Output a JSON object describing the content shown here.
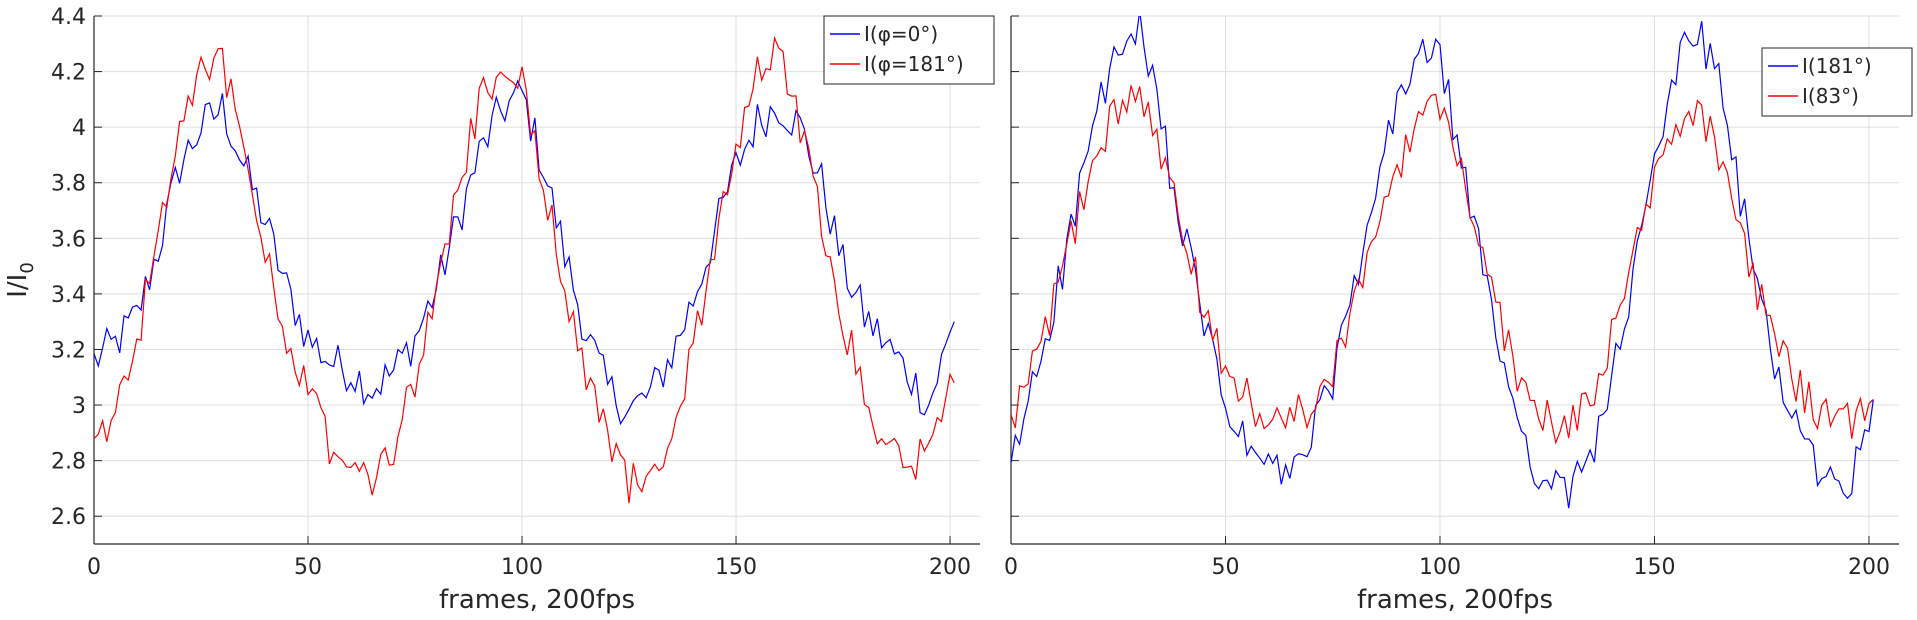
{
  "chart_data": [
    {
      "type": "line",
      "xlabel": "frames, 200fps",
      "ylabel": "I/I",
      "ylabel_sub": "0",
      "xlim": [
        0,
        207
      ],
      "ylim": [
        2.5,
        4.4
      ],
      "xticks": [
        "0",
        "50",
        "100",
        "150",
        "200"
      ],
      "yticks": [
        "2.6",
        "2.8",
        "3",
        "3.2",
        "3.4",
        "3.6",
        "3.8",
        "4",
        "4.2",
        "4.4"
      ],
      "grid": true,
      "legend_position": "top-right",
      "series": [
        {
          "name": "I(φ=0°)",
          "color": "#0000ff",
          "x": [
            0,
            5,
            10,
            15,
            20,
            25,
            30,
            35,
            40,
            45,
            50,
            55,
            60,
            65,
            70,
            75,
            80,
            85,
            90,
            95,
            100,
            105,
            110,
            115,
            120,
            125,
            130,
            135,
            140,
            145,
            150,
            155,
            160,
            165,
            170,
            175,
            180,
            185,
            190,
            195,
            201
          ],
          "y": [
            3.16,
            3.22,
            3.32,
            3.56,
            3.86,
            4.0,
            4.07,
            3.86,
            3.66,
            3.42,
            3.24,
            3.16,
            3.12,
            3.06,
            3.12,
            3.24,
            3.42,
            3.66,
            3.9,
            4.06,
            4.12,
            3.86,
            3.54,
            3.26,
            3.06,
            2.98,
            3.04,
            3.18,
            3.38,
            3.62,
            3.86,
            4.02,
            4.08,
            4.0,
            3.8,
            3.5,
            3.32,
            3.22,
            3.12,
            3.0,
            3.3
          ]
        },
        {
          "name": "I(φ=181°)",
          "color": "#ff0000",
          "x": [
            0,
            5,
            10,
            15,
            20,
            25,
            30,
            35,
            40,
            45,
            50,
            55,
            60,
            65,
            70,
            75,
            80,
            85,
            90,
            95,
            100,
            105,
            110,
            115,
            120,
            125,
            130,
            135,
            140,
            145,
            150,
            155,
            160,
            165,
            170,
            175,
            180,
            185,
            190,
            195,
            201
          ],
          "y": [
            2.84,
            3.02,
            3.24,
            3.58,
            3.98,
            4.2,
            4.25,
            3.88,
            3.58,
            3.26,
            3.04,
            2.86,
            2.76,
            2.74,
            2.84,
            3.08,
            3.4,
            3.76,
            4.08,
            4.22,
            4.18,
            3.82,
            3.44,
            3.1,
            2.86,
            2.72,
            2.76,
            2.92,
            3.2,
            3.56,
            3.94,
            4.18,
            4.26,
            4.02,
            3.68,
            3.3,
            3.04,
            2.86,
            2.78,
            2.82,
            3.08
          ]
        }
      ]
    },
    {
      "type": "line",
      "xlabel": "frames, 200fps",
      "ylabel": "",
      "xlim": [
        0,
        207
      ],
      "ylim": [
        2.5,
        4.4
      ],
      "xticks": [
        "0",
        "50",
        "100",
        "150",
        "200"
      ],
      "y_tick_values": [
        2.6,
        2.8,
        3.0,
        3.2,
        3.4,
        3.6,
        3.8,
        4.0,
        4.2,
        4.4
      ],
      "grid": true,
      "legend_position": "top-right",
      "series": [
        {
          "name": "I(181°)",
          "color": "#0000ff",
          "x": [
            0,
            5,
            10,
            15,
            20,
            25,
            30,
            35,
            40,
            45,
            50,
            55,
            60,
            65,
            70,
            75,
            80,
            85,
            90,
            95,
            100,
            105,
            110,
            115,
            120,
            125,
            130,
            135,
            140,
            145,
            150,
            155,
            160,
            165,
            170,
            175,
            180,
            185,
            190,
            195,
            201
          ],
          "y": [
            2.76,
            3.08,
            3.36,
            3.7,
            4.06,
            4.26,
            4.34,
            4.02,
            3.62,
            3.3,
            3.0,
            2.84,
            2.78,
            2.74,
            2.88,
            3.1,
            3.4,
            3.76,
            4.08,
            4.28,
            4.24,
            3.88,
            3.48,
            3.14,
            2.86,
            2.7,
            2.68,
            2.82,
            3.08,
            3.44,
            3.86,
            4.22,
            4.36,
            4.16,
            3.74,
            3.36,
            3.04,
            2.86,
            2.72,
            2.7,
            3.02
          ]
        },
        {
          "name": "I(83°)",
          "color": "#ff0000",
          "x": [
            0,
            5,
            10,
            15,
            20,
            25,
            30,
            35,
            40,
            45,
            50,
            55,
            60,
            65,
            70,
            75,
            80,
            85,
            90,
            95,
            100,
            105,
            110,
            115,
            120,
            125,
            130,
            135,
            140,
            145,
            150,
            155,
            160,
            165,
            170,
            175,
            180,
            185,
            190,
            195,
            201
          ],
          "y": [
            2.92,
            3.12,
            3.36,
            3.64,
            3.92,
            4.08,
            4.14,
            3.92,
            3.62,
            3.36,
            3.14,
            3.02,
            2.96,
            2.94,
            3.0,
            3.14,
            3.36,
            3.62,
            3.86,
            4.02,
            4.06,
            3.84,
            3.54,
            3.26,
            3.04,
            2.94,
            2.94,
            3.04,
            3.24,
            3.5,
            3.8,
            4.02,
            4.06,
            3.9,
            3.64,
            3.36,
            3.16,
            3.04,
            2.96,
            2.94,
            3.02
          ]
        }
      ]
    }
  ]
}
